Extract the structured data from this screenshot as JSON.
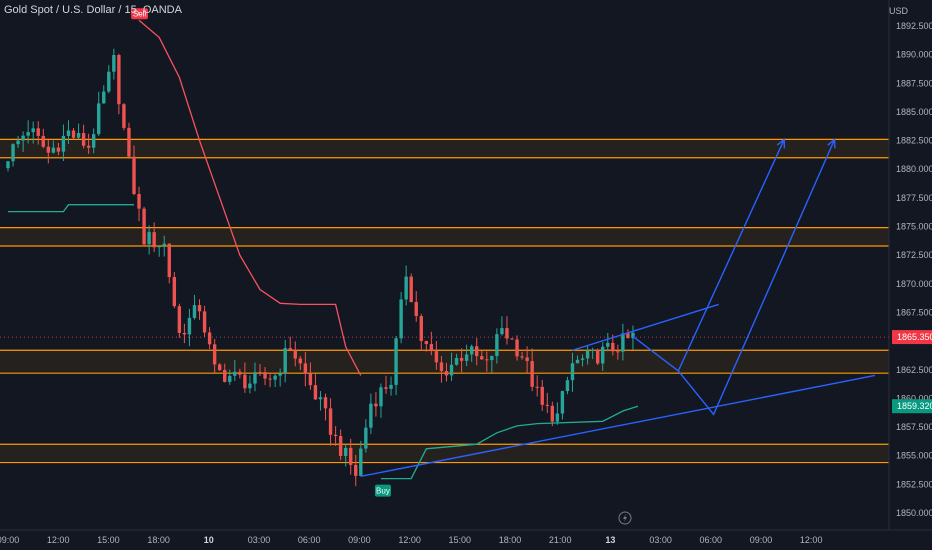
{
  "header": {
    "symbol_title": "Gold Spot / U.S. Dollar",
    "interval": "15",
    "broker": "OANDA",
    "separator": ", "
  },
  "currency_label": "USD",
  "colors": {
    "background": "#131722",
    "bull": "#26a69a",
    "bear": "#ef5350",
    "zone_line": "#ff9800",
    "trend_line": "#2962ff",
    "sell_line": "#f7525f",
    "buy_line": "#22ab94",
    "last_price_bg": "#f23645",
    "support_price_bg": "#089981"
  },
  "price_axis": {
    "ticks": [
      "1892.500",
      "1890.000",
      "1887.500",
      "1885.000",
      "1882.500",
      "1880.000",
      "1877.500",
      "1875.000",
      "1872.500",
      "1870.000",
      "1867.500",
      "1862.500",
      "1860.000",
      "1857.500",
      "1855.000",
      "1852.500",
      "1850.000"
    ],
    "last_price_label": "1865.350",
    "support_price_label": "1859.320"
  },
  "time_axis": {
    "ticks": [
      "09:00",
      "12:00",
      "15:00",
      "18:00",
      "10",
      "03:00",
      "06:00",
      "09:00",
      "12:00",
      "15:00",
      "18:00",
      "21:00",
      "13",
      "03:00",
      "06:00",
      "09:00",
      "12:00"
    ]
  },
  "markers": {
    "sell_label": "Sell",
    "buy_label": "Buy"
  },
  "chart_data": {
    "type": "candlestick",
    "symbol": "Gold Spot / U.S. Dollar",
    "interval": "15",
    "ylim": [
      1849.5,
      1895.5
    ],
    "x_range": [
      "09:00 (day 1)",
      "12:00 (day 13)"
    ],
    "x_ticks": [
      "09:00",
      "12:00",
      "15:00",
      "18:00",
      "10",
      "03:00",
      "06:00",
      "09:00",
      "12:00",
      "15:00",
      "18:00",
      "21:00",
      "13",
      "03:00",
      "06:00",
      "09:00",
      "12:00"
    ],
    "y_ticks": [
      1892.5,
      1890,
      1887.5,
      1885,
      1882.5,
      1880,
      1877.5,
      1875,
      1872.5,
      1870,
      1867.5,
      1862.5,
      1860,
      1857.5,
      1855,
      1852.5,
      1850
    ],
    "last_price": 1865.35,
    "support_price": 1859.32,
    "zones": [
      {
        "top": 1882.6,
        "bottom": 1881.0
      },
      {
        "top": 1874.9,
        "bottom": 1873.3
      },
      {
        "top": 1864.2,
        "bottom": 1862.2
      },
      {
        "top": 1856.0,
        "bottom": 1854.4
      }
    ],
    "candle_waypoints": [
      {
        "bar": 0,
        "close": 1881.2
      },
      {
        "bar": 4,
        "close": 1883.6
      },
      {
        "bar": 8,
        "close": 1881.4
      },
      {
        "bar": 12,
        "close": 1883.2
      },
      {
        "bar": 16,
        "close": 1882.0
      },
      {
        "bar": 21,
        "close": 1889.4
      },
      {
        "bar": 24,
        "close": 1880.4
      },
      {
        "bar": 27,
        "close": 1874.0
      },
      {
        "bar": 31,
        "close": 1873.4
      },
      {
        "bar": 34,
        "close": 1865.6
      },
      {
        "bar": 38,
        "close": 1868.0
      },
      {
        "bar": 41,
        "close": 1862.4
      },
      {
        "bar": 48,
        "close": 1861.4
      },
      {
        "bar": 53,
        "close": 1862.0
      },
      {
        "bar": 56,
        "close": 1864.6
      },
      {
        "bar": 62,
        "close": 1859.4
      },
      {
        "bar": 65,
        "close": 1856.4
      },
      {
        "bar": 69,
        "close": 1853.4
      },
      {
        "bar": 72,
        "close": 1859.6
      },
      {
        "bar": 76,
        "close": 1861.6
      },
      {
        "bar": 79,
        "close": 1871.0
      },
      {
        "bar": 82,
        "close": 1865.2
      },
      {
        "bar": 86,
        "close": 1862.2
      },
      {
        "bar": 91,
        "close": 1864.2
      },
      {
        "bar": 95,
        "close": 1862.8
      },
      {
        "bar": 98,
        "close": 1866.2
      },
      {
        "bar": 102,
        "close": 1863.8
      },
      {
        "bar": 106,
        "close": 1859.2
      },
      {
        "bar": 109,
        "close": 1858.4
      },
      {
        "bar": 112,
        "close": 1863.0
      },
      {
        "bar": 116,
        "close": 1863.6
      },
      {
        "bar": 120,
        "close": 1864.4
      },
      {
        "bar": 124,
        "close": 1865.35
      }
    ],
    "sell_trail": [
      {
        "bar": 26,
        "value": 1893.0
      },
      {
        "bar": 30,
        "value": 1891.5
      },
      {
        "bar": 34,
        "value": 1888.0
      },
      {
        "bar": 38,
        "value": 1882.5
      },
      {
        "bar": 42,
        "value": 1877.5
      },
      {
        "bar": 46,
        "value": 1872.5
      },
      {
        "bar": 50,
        "value": 1869.5
      },
      {
        "bar": 54,
        "value": 1868.3
      },
      {
        "bar": 58,
        "value": 1868.2
      },
      {
        "bar": 65,
        "value": 1868.2
      },
      {
        "bar": 67,
        "value": 1864.5
      },
      {
        "bar": 70,
        "value": 1862.0
      }
    ],
    "green_trail_early": [
      {
        "bar": 0,
        "value": 1876.3
      },
      {
        "bar": 11,
        "value": 1876.3
      },
      {
        "bar": 12,
        "value": 1876.9
      },
      {
        "bar": 25,
        "value": 1876.9
      }
    ],
    "buy_trail": [
      {
        "bar": 74,
        "value": 1853.0
      },
      {
        "bar": 80,
        "value": 1853.0
      },
      {
        "bar": 83,
        "value": 1855.6
      },
      {
        "bar": 93,
        "value": 1856.0
      },
      {
        "bar": 97,
        "value": 1857.0
      },
      {
        "bar": 101,
        "value": 1857.6
      },
      {
        "bar": 105,
        "value": 1857.8
      },
      {
        "bar": 118,
        "value": 1858.0
      },
      {
        "bar": 122,
        "value": 1858.9
      },
      {
        "bar": 125,
        "value": 1859.32
      }
    ],
    "trend_lines": [
      {
        "from": {
          "bar": 70,
          "value": 1853.2
        },
        "to": {
          "bar": 172,
          "value": 1862.0
        }
      },
      {
        "from": {
          "bar": 112,
          "value": 1864.2
        },
        "to": {
          "bar": 141,
          "value": 1868.2
        }
      }
    ],
    "projection_paths": [
      {
        "points": [
          {
            "bar": 124,
            "value": 1865.4
          },
          {
            "bar": 133,
            "value": 1862.4
          },
          {
            "bar": 154,
            "value": 1882.6
          }
        ]
      },
      {
        "points": [
          {
            "bar": 133,
            "value": 1862.4
          },
          {
            "bar": 140,
            "value": 1858.6
          },
          {
            "bar": 164,
            "value": 1882.6
          }
        ]
      }
    ]
  }
}
